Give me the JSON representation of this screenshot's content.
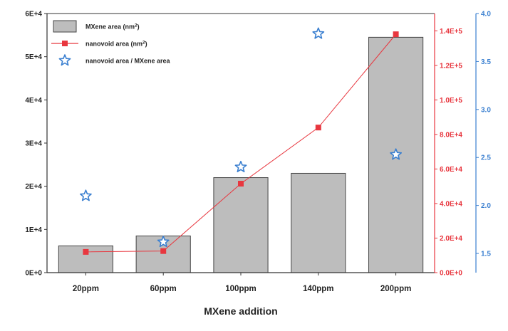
{
  "chart_data": {
    "type": "bar",
    "xlabel": "MXene addition",
    "categories": [
      "20ppm",
      "60ppm",
      "100ppm",
      "140ppm",
      "200ppm"
    ],
    "series": [
      {
        "name": "MXene area (nm²)",
        "type": "bar",
        "axis": "left",
        "color": "#bdbdbd",
        "values": [
          6200,
          8500,
          22000,
          23000,
          54500
        ]
      },
      {
        "name": "nanovoid area (nm²)",
        "type": "line",
        "axis": "right-red",
        "color": "#e8373f",
        "values": [
          12000,
          12500,
          51500,
          84000,
          138000
        ]
      },
      {
        "name": "nanovoid area / MXene area",
        "type": "scatter",
        "axis": "right-blue",
        "color": "#3a7fd0",
        "values": [
          2.1,
          1.62,
          2.4,
          3.79,
          2.53
        ]
      }
    ],
    "axes": {
      "left": {
        "range": [
          0,
          60000
        ],
        "ticks": [
          "0E+0",
          "1E+4",
          "2E+4",
          "3E+4",
          "4E+4",
          "5E+4",
          "6E+4"
        ]
      },
      "right_red": {
        "range": [
          0,
          150000
        ],
        "color": "#e8373f",
        "ticks": [
          "0.0E+0",
          "2.0E+4",
          "4.0E+4",
          "6.0E+4",
          "8.0E+4",
          "1.0E+5",
          "1.2E+5",
          "1.4E+5"
        ]
      },
      "right_blue": {
        "range": [
          1.3,
          4.0
        ],
        "color": "#3a7fd0",
        "ticks": [
          "1.5",
          "2.0",
          "2.5",
          "3.0",
          "3.5",
          "4.0"
        ]
      }
    },
    "grid": false,
    "legend": {
      "position": "top-left",
      "entries": [
        {
          "label_main": "MXene area (nm",
          "label_sup": "2",
          "label_end": ")"
        },
        {
          "label_main": "nanovoid area (nm",
          "label_sup": "2",
          "label_end": ")"
        },
        {
          "label_main": "nanovoid area / MXene area"
        }
      ]
    }
  }
}
